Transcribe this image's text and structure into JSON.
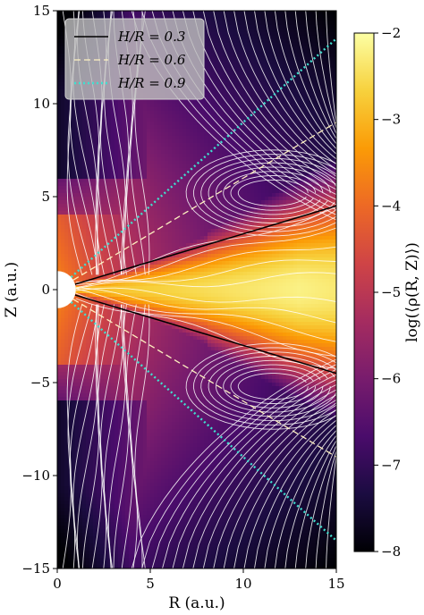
{
  "chart_data": {
    "type": "heatmap",
    "xlabel": "R (a.u.)",
    "ylabel": "Z (a.u.)",
    "xlim": [
      0,
      15
    ],
    "ylim": [
      -15,
      15
    ],
    "x_ticks": [
      0,
      5,
      10,
      15
    ],
    "y_ticks": [
      -15,
      -10,
      -5,
      0,
      5,
      10,
      15
    ],
    "x_tick_labels": [
      "0",
      "5",
      "10",
      "15"
    ],
    "y_tick_labels": [
      "−15",
      "−10",
      "−5",
      "0",
      "5",
      "10",
      "15"
    ],
    "colorbar": {
      "label": "log(⟨ρ(R, Z)⟩)",
      "range": [
        -8,
        -2
      ],
      "ticks": [
        -8,
        -7,
        -6,
        -5,
        -4,
        -3,
        -2
      ],
      "tick_labels": [
        "−8",
        "−7",
        "−6",
        "−5",
        "−4",
        "−3",
        "−2"
      ],
      "colormap": "inferno",
      "colors": [
        "#000004",
        "#1b0c41",
        "#4a0c6b",
        "#781c6d",
        "#a52c60",
        "#cf4446",
        "#ed6925",
        "#fb9b06",
        "#f7d13d",
        "#fcffa4"
      ]
    },
    "inner_boundary_radius": 1,
    "series": [
      {
        "name": "H/R = 0.3",
        "slope": 0.3,
        "style": "solid",
        "color": "#000000"
      },
      {
        "name": "H/R = 0.6",
        "slope": 0.6,
        "style": "dashed",
        "color": "#fff2c0"
      },
      {
        "name": "H/R = 0.9",
        "slope": 0.9,
        "style": "dotted",
        "color": "#40e0d0"
      }
    ],
    "legend_position": "top-left",
    "streamlines": true,
    "streamline_color": "#ffffff"
  }
}
